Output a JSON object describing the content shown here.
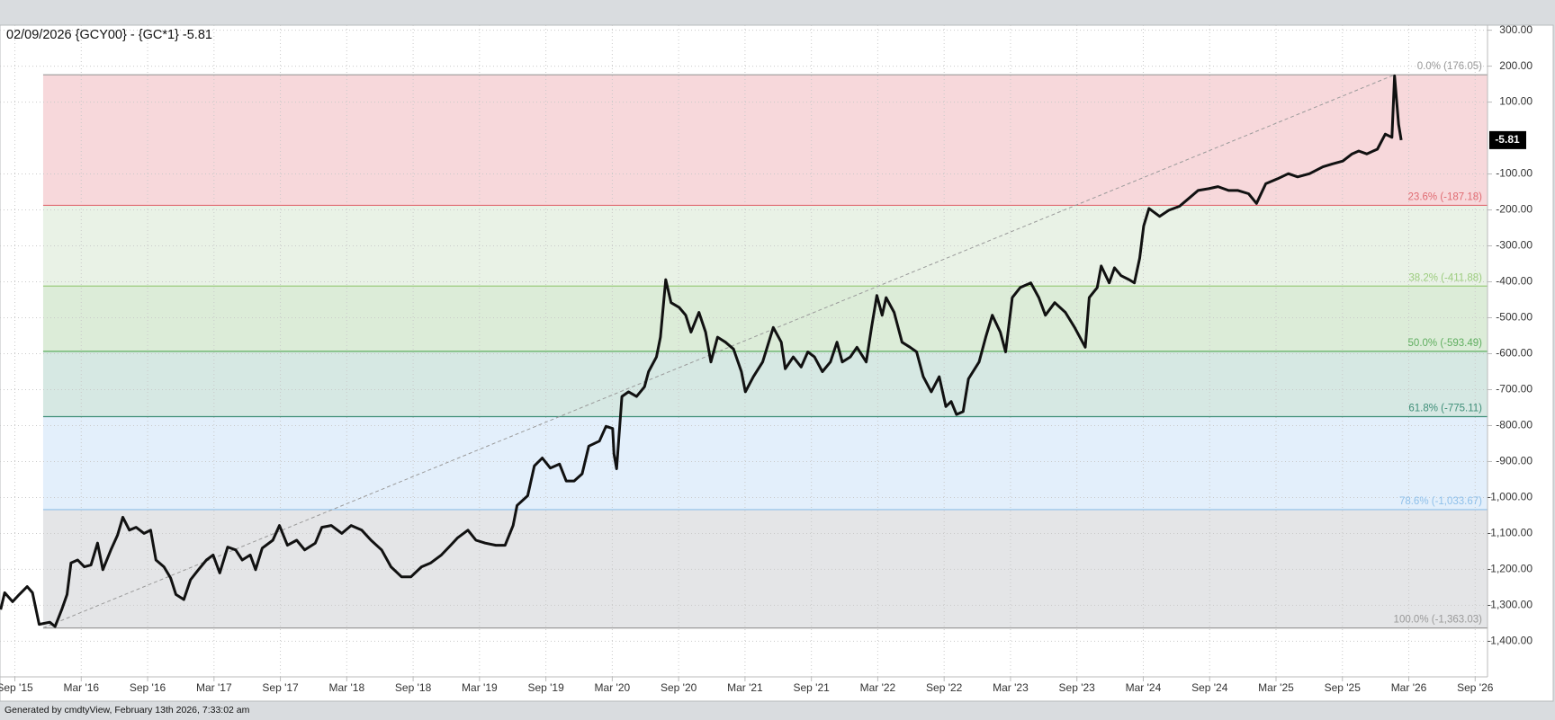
{
  "chart_data": {
    "type": "line",
    "title": "02/09/2026 {GCY00} - {GC*1} -5.81",
    "footer": "Generated by cmdtyView, February 13th 2026, 7:33:02 am",
    "color": "#111111",
    "grid": true,
    "xlim": [
      2015.555,
      2026.76
    ],
    "ylim": [
      -1499,
      314
    ],
    "xticks": [
      {
        "value": 2015.667,
        "label": "Sep '15"
      },
      {
        "value": 2016.167,
        "label": "Mar '16"
      },
      {
        "value": 2016.667,
        "label": "Sep '16"
      },
      {
        "value": 2017.167,
        "label": "Mar '17"
      },
      {
        "value": 2017.667,
        "label": "Sep '17"
      },
      {
        "value": 2018.167,
        "label": "Mar '18"
      },
      {
        "value": 2018.667,
        "label": "Sep '18"
      },
      {
        "value": 2019.167,
        "label": "Mar '19"
      },
      {
        "value": 2019.667,
        "label": "Sep '19"
      },
      {
        "value": 2020.167,
        "label": "Mar '20"
      },
      {
        "value": 2020.667,
        "label": "Sep '20"
      },
      {
        "value": 2021.167,
        "label": "Mar '21"
      },
      {
        "value": 2021.667,
        "label": "Sep '21"
      },
      {
        "value": 2022.167,
        "label": "Mar '22"
      },
      {
        "value": 2022.667,
        "label": "Sep '22"
      },
      {
        "value": 2023.167,
        "label": "Mar '23"
      },
      {
        "value": 2023.667,
        "label": "Sep '23"
      },
      {
        "value": 2024.167,
        "label": "Mar '24"
      },
      {
        "value": 2024.667,
        "label": "Sep '24"
      },
      {
        "value": 2025.167,
        "label": "Mar '25"
      },
      {
        "value": 2025.667,
        "label": "Sep '25"
      },
      {
        "value": 2026.167,
        "label": "Mar '26"
      },
      {
        "value": 2026.667,
        "label": "Sep '26"
      }
    ],
    "yticks": [
      {
        "value": 300,
        "label": "300.00"
      },
      {
        "value": 200,
        "label": "200.00"
      },
      {
        "value": 100,
        "label": "100.00"
      },
      {
        "value": -100,
        "label": "-100.00"
      },
      {
        "value": -200,
        "label": "-200.00"
      },
      {
        "value": -300,
        "label": "-300.00"
      },
      {
        "value": -400,
        "label": "-400.00"
      },
      {
        "value": -500,
        "label": "-500.00"
      },
      {
        "value": -600,
        "label": "-600.00"
      },
      {
        "value": -700,
        "label": "-700.00"
      },
      {
        "value": -800,
        "label": "-800.00"
      },
      {
        "value": -900,
        "label": "-900.00"
      },
      {
        "value": -1000,
        "label": "-1,000.00"
      },
      {
        "value": -1100,
        "label": "-1,100.00"
      },
      {
        "value": -1200,
        "label": "-1,200.00"
      },
      {
        "value": -1300,
        "label": "-1,300.00"
      },
      {
        "value": -1400,
        "label": "-1,400.00"
      }
    ],
    "x": [
      2015.56,
      2015.59,
      2015.65,
      2015.7,
      2015.76,
      2015.8,
      2015.85,
      2015.93,
      2015.97,
      2016.02,
      2016.06,
      2016.09,
      2016.14,
      2016.19,
      2016.24,
      2016.29,
      2016.33,
      2016.39,
      2016.44,
      2016.48,
      2016.53,
      2016.58,
      2016.64,
      2016.69,
      2016.73,
      2016.79,
      2016.84,
      2016.88,
      2016.94,
      2016.99,
      2017.05,
      2017.11,
      2017.16,
      2017.21,
      2017.27,
      2017.33,
      2017.38,
      2017.44,
      2017.48,
      2017.53,
      2017.61,
      2017.66,
      2017.72,
      2017.79,
      2017.85,
      2017.93,
      2017.98,
      2018.05,
      2018.13,
      2018.2,
      2018.28,
      2018.35,
      2018.43,
      2018.5,
      2018.58,
      2018.65,
      2018.73,
      2018.8,
      2018.88,
      2018.95,
      2019.0,
      2019.08,
      2019.14,
      2019.21,
      2019.29,
      2019.36,
      2019.42,
      2019.45,
      2019.53,
      2019.58,
      2019.64,
      2019.7,
      2019.77,
      2019.82,
      2019.88,
      2019.94,
      2019.99,
      2020.07,
      2020.12,
      2020.17,
      2020.18,
      2020.2,
      2020.24,
      2020.29,
      2020.35,
      2020.41,
      2020.44,
      2020.5,
      2020.53,
      2020.57,
      2020.61,
      2020.67,
      2020.72,
      2020.76,
      2020.82,
      2020.87,
      2020.91,
      2020.96,
      2021.02,
      2021.08,
      2021.14,
      2021.17,
      2021.23,
      2021.3,
      2021.38,
      2021.44,
      2021.47,
      2021.53,
      2021.59,
      2021.64,
      2021.69,
      2021.75,
      2021.81,
      2021.86,
      2021.9,
      2021.96,
      2022.01,
      2022.08,
      2022.12,
      2022.16,
      2022.2,
      2022.23,
      2022.29,
      2022.35,
      2022.41,
      2022.46,
      2022.51,
      2022.57,
      2022.63,
      2022.68,
      2022.72,
      2022.76,
      2022.81,
      2022.85,
      2022.93,
      2022.98,
      2023.03,
      2023.09,
      2023.13,
      2023.18,
      2023.24,
      2023.32,
      2023.38,
      2023.43,
      2023.5,
      2023.58,
      2023.65,
      2023.73,
      2023.76,
      2023.82,
      2023.85,
      2023.91,
      2023.95,
      2024.0,
      2024.06,
      2024.1,
      2024.14,
      2024.17,
      2024.21,
      2024.29,
      2024.36,
      2024.44,
      2024.51,
      2024.58,
      2024.66,
      2024.73,
      2024.81,
      2024.88,
      2024.96,
      2025.02,
      2025.09,
      2025.18,
      2025.26,
      2025.33,
      2025.42,
      2025.52,
      2025.59,
      2025.67,
      2025.74,
      2025.79,
      2025.85,
      2025.93,
      2025.99,
      2026.04,
      2026.06,
      2026.09,
      2026.11
    ],
    "values": [
      -1312,
      -1265,
      -1290,
      -1270,
      -1248,
      -1265,
      -1353,
      -1347,
      -1359,
      -1312,
      -1270,
      -1182,
      -1174,
      -1193,
      -1188,
      -1127,
      -1201,
      -1146,
      -1105,
      -1055,
      -1091,
      -1083,
      -1100,
      -1091,
      -1174,
      -1193,
      -1224,
      -1270,
      -1284,
      -1229,
      -1201,
      -1174,
      -1160,
      -1210,
      -1138,
      -1146,
      -1174,
      -1160,
      -1201,
      -1141,
      -1119,
      -1078,
      -1133,
      -1119,
      -1146,
      -1127,
      -1083,
      -1078,
      -1100,
      -1078,
      -1091,
      -1119,
      -1146,
      -1193,
      -1221,
      -1221,
      -1193,
      -1182,
      -1160,
      -1133,
      -1113,
      -1091,
      -1119,
      -1127,
      -1133,
      -1133,
      -1078,
      -1022,
      -995,
      -912,
      -890,
      -918,
      -907,
      -954,
      -954,
      -934,
      -857,
      -843,
      -802,
      -808,
      -879,
      -920,
      -719,
      -706,
      -719,
      -692,
      -650,
      -609,
      -554,
      -394,
      -458,
      -471,
      -493,
      -540,
      -485,
      -540,
      -623,
      -554,
      -568,
      -587,
      -650,
      -706,
      -664,
      -623,
      -527,
      -568,
      -642,
      -609,
      -637,
      -595,
      -609,
      -650,
      -623,
      -568,
      -623,
      -609,
      -582,
      -623,
      -527,
      -438,
      -493,
      -444,
      -485,
      -568,
      -582,
      -595,
      -664,
      -706,
      -664,
      -747,
      -733,
      -769,
      -761,
      -670,
      -623,
      -554,
      -493,
      -540,
      -595,
      -444,
      -416,
      -403,
      -444,
      -493,
      -458,
      -485,
      -527,
      -582,
      -444,
      -416,
      -356,
      -403,
      -361,
      -383,
      -394,
      -403,
      -334,
      -245,
      -196,
      -218,
      -201,
      -190,
      -168,
      -146,
      -141,
      -135,
      -146,
      -146,
      -155,
      -182,
      -127,
      -113,
      -99,
      -108,
      -99,
      -80,
      -72,
      -64,
      -44,
      -36,
      -44,
      -31,
      11,
      2,
      173,
      38,
      -5.81
    ],
    "last_value": -5.81,
    "fib": {
      "x_start": 2015.88,
      "levels": [
        {
          "label": "0.0% (176.05)",
          "value": 176.05,
          "color": "#9a9a9a"
        },
        {
          "label": "23.6% (-187.18)",
          "value": -187.18,
          "color": "#e06b72"
        },
        {
          "label": "38.2% (-411.88)",
          "value": -411.88,
          "color": "#9ccc7e"
        },
        {
          "label": "50.0% (-593.49)",
          "value": -593.49,
          "color": "#5fae5f"
        },
        {
          "label": "61.8% (-775.11)",
          "value": -775.11,
          "color": "#3f8f78"
        },
        {
          "label": "78.6% (-1,033.67)",
          "value": -1033.67,
          "color": "#8fc0ea"
        },
        {
          "label": "100.0% (-1,363.03)",
          "value": -1363.03,
          "color": "#9a9a9a"
        }
      ],
      "band_colors": [
        "#f7d8db",
        "#e9f2e6",
        "#dcecd8",
        "#d6e8e3",
        "#e3effb",
        "#e4e5e7"
      ]
    },
    "trend": {
      "x": [
        2015.88,
        2026.06
      ],
      "values": [
        -1363.03,
        176.05
      ],
      "color": "#9a9a9a"
    }
  }
}
